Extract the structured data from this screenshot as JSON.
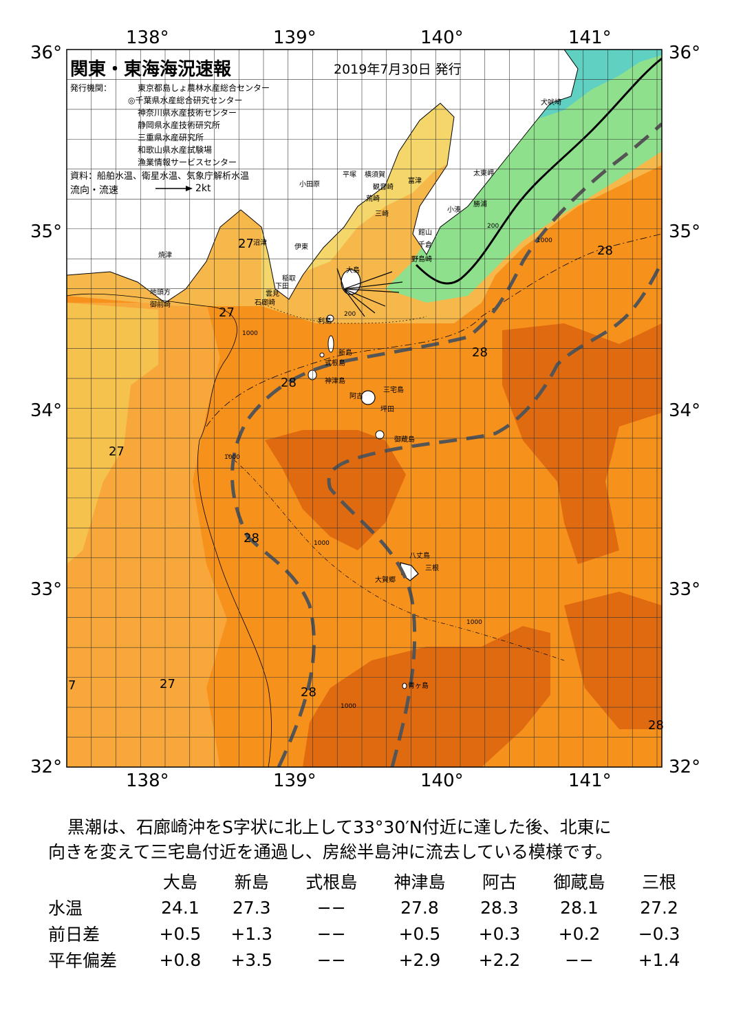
{
  "map": {
    "title": "関東・東海海況速報",
    "date": "2019年7月30日 発行",
    "issuer_label": "発行機関：",
    "issuers": [
      "東京都島しょ農林水産総合センター",
      "◎千葉県水産総合研究センター",
      "神奈川県水産技術センター",
      "静岡県水産技術研究所",
      "三重県水産研究所",
      "和歌山県水産試験場",
      "漁業情報サービスセンター"
    ],
    "source": "資料：船舶水温、衛星水温、気象庁解析水温",
    "current_legend": "流向・流速",
    "current_scale": "2kt",
    "lon_ticks": [
      "138°",
      "139°",
      "140°",
      "141°"
    ],
    "lat_ticks": [
      "36°",
      "35°",
      "34°",
      "33°",
      "32°"
    ],
    "place_names": {
      "inubosaki": "犬吠埼",
      "taitomisaki": "太東岬",
      "katsuura": "勝浦",
      "kominato": "小湊",
      "futtsu": "富津",
      "tateyama": "館山",
      "chikura": "千倉",
      "nojimazaki": "野島崎",
      "odawara": "小田原",
      "hiratsuka": "平塚",
      "yokosuka": "横須賀",
      "kannonzaki": "観音崎",
      "arasaki": "荒崎",
      "misaki": "三崎",
      "ito": "伊東",
      "inatori": "稲取",
      "shimoda": "下田",
      "kumomi": "雲見",
      "irozaki": "石廊崎",
      "numazu": "沼津",
      "yaizu": "焼津",
      "jitogata": "地頭方",
      "omaezaki": "御前崎",
      "oshima": "大島",
      "toshima": "利島",
      "niijima": "新島",
      "shikinejima": "式根島",
      "kozushima": "神津島",
      "miyakejima": "三宅島",
      "ako": "阿古",
      "tsubota": "坪田",
      "mikurajima": "御蔵島",
      "hachijojima": "八丈島",
      "mitsune": "三根",
      "okago": "大賀郷",
      "aogashima": "青ヶ島"
    },
    "temp_labels": [
      "27",
      "27",
      "27",
      "27",
      "27",
      "28",
      "28",
      "28",
      "28",
      "28",
      "28",
      "7",
      "28"
    ],
    "depth_labels": [
      "200",
      "1000"
    ],
    "colors": {
      "cold": "#5fd0c2",
      "cool": "#8fe08c",
      "mild": "#d8ec7e",
      "warm1": "#f5d66a",
      "warm2": "#f6b84a",
      "warm3": "#f6911c",
      "hot": "#e06a10",
      "land": "#ffffff",
      "kuroshio": "#555555"
    }
  },
  "summary": {
    "line1": "黒潮は、石廊崎沖をS字状に北上して33°30′N付近に達した後、北東に",
    "line2": "向きを変えて三宅島付近を通過し、房総半島沖に流去している模様です。"
  },
  "table": {
    "headers": [
      "大島",
      "新島",
      "式根島",
      "神津島",
      "阿古",
      "御蔵島",
      "三根"
    ],
    "rows": [
      {
        "label": "水温",
        "values": [
          "24.1",
          "27.3",
          "−−",
          "27.8",
          "28.3",
          "28.1",
          "27.2"
        ]
      },
      {
        "label": "前日差",
        "values": [
          "+0.5",
          "+1.3",
          "−−",
          "+0.5",
          "+0.3",
          "+0.2",
          "−0.3"
        ]
      },
      {
        "label": "平年偏差",
        "values": [
          "+0.8",
          "+3.5",
          "−−",
          "+2.9",
          "+2.2",
          "−−",
          "+1.4"
        ]
      }
    ]
  }
}
